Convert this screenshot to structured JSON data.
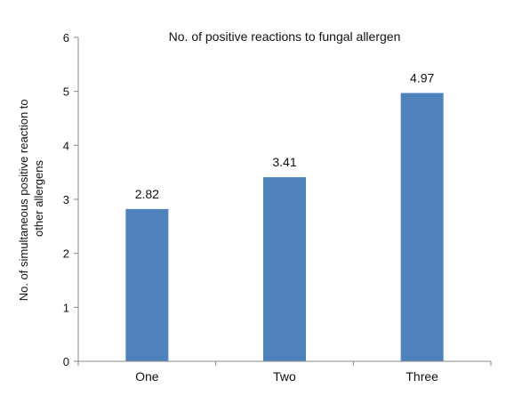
{
  "chart_data": {
    "type": "bar",
    "title": "No. of positive reactions to fungal allergen",
    "xlabel": "",
    "ylabel_lines": [
      "No. of simultaneous positive reaction to",
      "other allergens"
    ],
    "categories": [
      "One",
      "Two",
      "Three"
    ],
    "values": [
      2.82,
      3.41,
      4.97
    ],
    "data_labels": [
      "2.82",
      "3.41",
      "4.97"
    ],
    "ylim": [
      0,
      6
    ],
    "yticks": [
      0,
      1,
      2,
      3,
      4,
      5,
      6
    ],
    "grid": false,
    "legend": "none",
    "bar_color": "#4f81bd"
  }
}
